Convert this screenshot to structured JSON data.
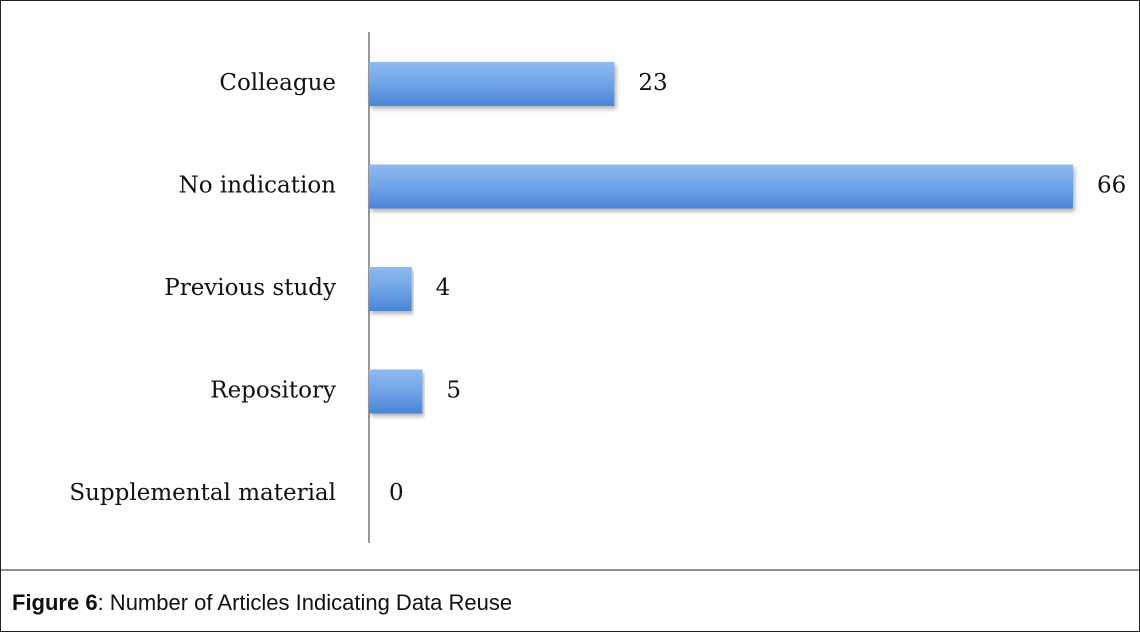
{
  "chart_data": {
    "type": "bar",
    "orientation": "horizontal",
    "categories": [
      "Colleague",
      "No indication",
      "Previous study",
      "Repository",
      "Supplemental material"
    ],
    "values": [
      23,
      66,
      4,
      5,
      0
    ],
    "color": "#5b9bd5"
  },
  "caption": {
    "label": "Figure 6",
    "text": ": Number of Articles Indicating Data Reuse"
  }
}
